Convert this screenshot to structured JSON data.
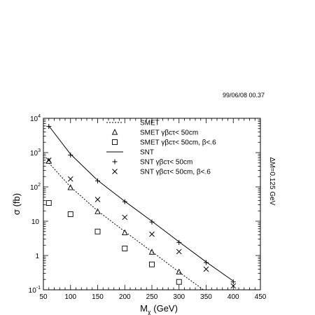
{
  "header": {
    "timestamp": "99/06/08   00.37"
  },
  "chart_data": {
    "type": "line",
    "title": "",
    "xlabel": "M",
    "xlabel_sub": "χ",
    "xlabel_unit": "(GeV)",
    "ylabel": "σ (fb)",
    "xlim": [
      50,
      450
    ],
    "ylim": [
      0.1,
      10000
    ],
    "yscale": "log",
    "grid": false,
    "legend_position": "top-right",
    "x_ticks": [
      "50",
      "100",
      "150",
      "200",
      "250",
      "300",
      "350",
      "400",
      "450"
    ],
    "y_ticks": [
      {
        "value": 10000,
        "base": "10",
        "exp": "4"
      },
      {
        "value": 1000,
        "base": "10",
        "exp": "3"
      },
      {
        "value": 100,
        "base": "10",
        "exp": "2"
      },
      {
        "value": 10,
        "base": "10",
        "exp": ""
      },
      {
        "value": 1,
        "base": "1",
        "exp": ""
      },
      {
        "value": 0.1,
        "base": "10",
        "exp": "-1"
      }
    ],
    "annotation": "ΔM=0.125 GeV",
    "series": [
      {
        "name": "SMET",
        "kind": "line",
        "style": "dashed",
        "x": [
          60,
          100,
          150,
          200,
          250,
          300,
          345
        ],
        "y": [
          500,
          100,
          20,
          5,
          1.3,
          0.33,
          0.1
        ]
      },
      {
        "name": "SMET γβcτ< 50cm",
        "kind": "markers",
        "marker": "triangle",
        "x": [
          60,
          100,
          150,
          200,
          250,
          300
        ],
        "y": [
          560,
          95,
          19,
          4.6,
          1.25,
          0.33
        ]
      },
      {
        "name": "SMET γβcτ< 50cm, β<.6",
        "kind": "markers",
        "marker": "square",
        "x": [
          60,
          100,
          150,
          200,
          250,
          300
        ],
        "y": [
          34,
          16,
          5,
          1.6,
          0.55,
          0.17
        ]
      },
      {
        "name": "SNT",
        "kind": "line",
        "style": "solid",
        "x": [
          60,
          100,
          150,
          200,
          250,
          300,
          350,
          400
        ],
        "y": [
          6000,
          900,
          155,
          38,
          10,
          2.5,
          0.65,
          0.18
        ]
      },
      {
        "name": "SNT γβcτ< 50cm",
        "kind": "markers",
        "marker": "plus",
        "x": [
          60,
          100,
          150,
          200,
          250,
          300,
          350,
          400
        ],
        "y": [
          5800,
          850,
          150,
          37,
          9.5,
          2.4,
          0.62,
          0.17
        ]
      },
      {
        "name": "SNT γβcτ< 50cm, β<.6",
        "kind": "markers",
        "marker": "cross",
        "x": [
          60,
          100,
          150,
          200,
          250,
          300,
          350,
          400
        ],
        "y": [
          600,
          170,
          43,
          13,
          4.2,
          1.3,
          0.4,
          0.13
        ]
      }
    ]
  }
}
